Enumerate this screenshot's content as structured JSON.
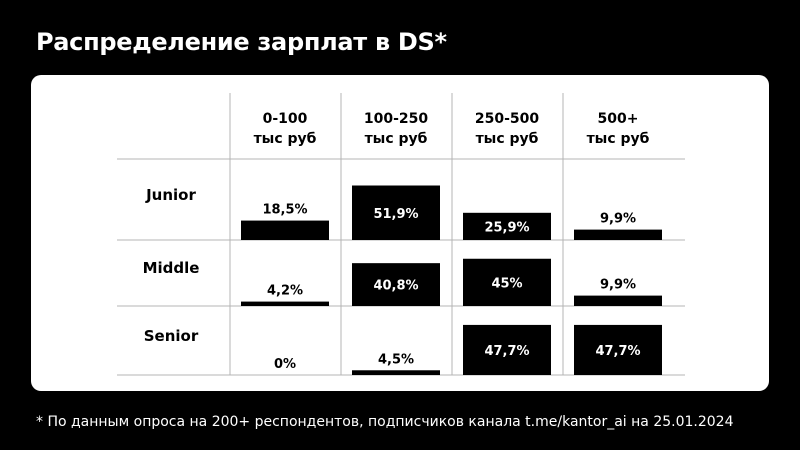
{
  "page_title": "Распределение зарплат в DS*",
  "footnote": "* По данным опроса на 200+ респондентов, подписчиков канала t.me/kantor_ai на 25.01.2024",
  "colors": {
    "background": "#000000",
    "card": "#ffffff",
    "bar": "#000000",
    "grid": "#b4b4b4",
    "text": "#000000"
  },
  "chart_data": {
    "type": "bar",
    "columns": [
      {
        "range": "0-100",
        "unit": "тыс руб"
      },
      {
        "range": "100-250",
        "unit": "тыс руб"
      },
      {
        "range": "250-500",
        "unit": "тыс руб"
      },
      {
        "range": "500+",
        "unit": "тыс руб"
      }
    ],
    "rows": [
      {
        "name": "Junior",
        "values": [
          18.5,
          51.9,
          25.9,
          9.9
        ],
        "labels": [
          "18,5%",
          "51,9%",
          "25,9%",
          "9,9%"
        ]
      },
      {
        "name": "Middle",
        "values": [
          4.2,
          40.8,
          45,
          9.9
        ],
        "labels": [
          "4,2%",
          "40,8%",
          "45%",
          "9,9%"
        ]
      },
      {
        "name": "Senior",
        "values": [
          0,
          4.5,
          47.7,
          47.7
        ],
        "labels": [
          "0%",
          "4,5%",
          "47,7%",
          "47,7%"
        ]
      }
    ]
  }
}
